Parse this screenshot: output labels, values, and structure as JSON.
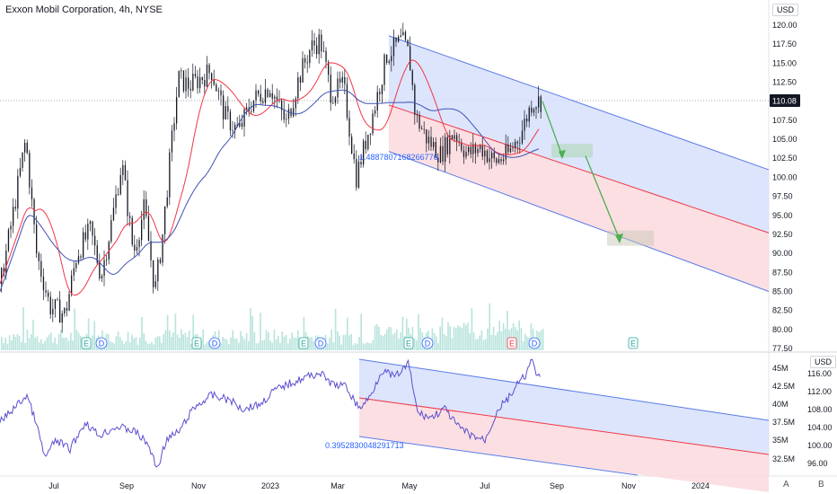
{
  "header": {
    "title": "Exxon Mobil Corporation, 4h, NYSE",
    "currency": "USD",
    "lower_currency": "USD"
  },
  "price_panel": {
    "last_price": "110.08",
    "ticks": [
      "120.00",
      "117.50",
      "115.00",
      "112.50",
      "110.00",
      "107.50",
      "105.00",
      "102.50",
      "100.00",
      "97.50",
      "95.00",
      "92.50",
      "90.00",
      "87.50",
      "85.00",
      "82.50",
      "80.00",
      "77.50"
    ],
    "range": [
      76.5,
      121.6
    ],
    "annotation": "1.4887807168266776",
    "earnings_markers": [
      "E",
      "D",
      "E",
      "D",
      "E",
      "D",
      "E",
      "D",
      "E",
      "D",
      "E"
    ]
  },
  "lower_panel": {
    "left_ticks": [
      "45M",
      "42.5M",
      "40M",
      "37.5M",
      "35M",
      "32.5M"
    ],
    "right_ticks": [
      "116.00",
      "112.00",
      "108.00",
      "104.00",
      "100.00",
      "96.00"
    ],
    "annotation": "0.3952830048291713"
  },
  "time_axis": {
    "labels": [
      "Jul",
      "Sep",
      "Nov",
      "2023",
      "Mar",
      "May",
      "Jul",
      "Sep",
      "Nov",
      "2024"
    ]
  },
  "footer": {
    "auto_label": "A",
    "scale_label": "B"
  },
  "colors": {
    "candle": "#131722",
    "ma_fast": "#f23645",
    "ma_slow": "#3f51b5",
    "channel_line": "#5b7be8",
    "channel_upper_fill": "#d6e0fb",
    "channel_lower_fill": "#fbd9dd",
    "target_arrow": "#4caf50",
    "obv_line": "#5a4fcf",
    "volume": "#a6dcd3"
  },
  "chart_data": {
    "type": "candlestick",
    "title": "Exxon Mobil Corporation, 4h, NYSE",
    "xlabel": "",
    "ylabel": "USD",
    "ylim": [
      77.5,
      120
    ],
    "x_labels": [
      "Jul",
      "Sep",
      "Nov",
      "2023",
      "Mar",
      "May",
      "Jul",
      "Sep",
      "Nov",
      "2024"
    ],
    "series": [
      {
        "name": "",
        "description_values": "approximate close path by month",
        "points": [
          {
            "x": "Jun",
            "y": 86
          },
          {
            "x": "Jun",
            "y": 96
          },
          {
            "x": "Jun",
            "y": 105
          },
          {
            "x": "Jul",
            "y": 90
          },
          {
            "x": "Jul",
            "y": 82
          },
          {
            "x": "Aug",
            "y": 90
          },
          {
            "x": "Aug",
            "y": 96
          },
          {
            "x": "Sep",
            "y": 88
          },
          {
            "x": "Sep",
            "y": 85
          },
          {
            "x": "Oct",
            "y": 105
          },
          {
            "x": "Oct",
            "y": 112
          },
          {
            "x": "Nov",
            "y": 114
          },
          {
            "x": "Dec",
            "y": 104
          },
          {
            "x": "Dec",
            "y": 108
          },
          {
            "x": "2023",
            "y": 112
          },
          {
            "x": "Feb",
            "y": 117
          },
          {
            "x": "Feb",
            "y": 111
          },
          {
            "x": "Mar",
            "y": 99
          },
          {
            "x": "Apr",
            "y": 116
          },
          {
            "x": "May",
            "y": 105
          },
          {
            "x": "Jun",
            "y": 103
          },
          {
            "x": "Jul",
            "y": 102
          },
          {
            "x": "Aug",
            "y": 111
          },
          {
            "x": "Aug",
            "y": 110.08
          }
        ]
      }
    ],
    "last_price": 110.08,
    "projection_targets": [
      102.5,
      92
    ]
  }
}
